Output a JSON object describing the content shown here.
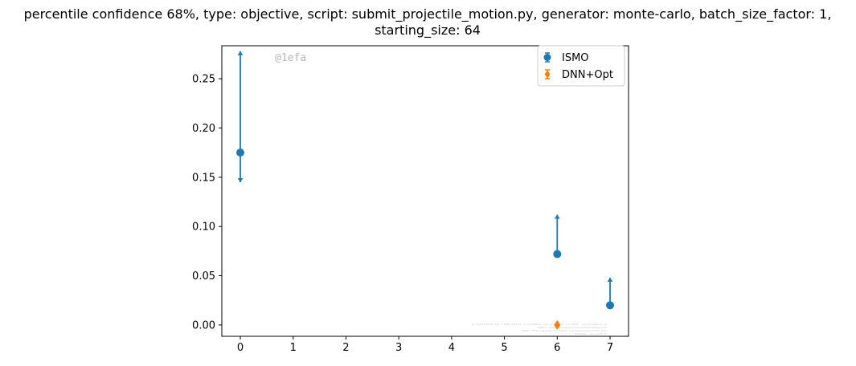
{
  "chart_data": {
    "type": "scatter",
    "title_lines": [
      "percentile confidence 68%, type: objective, script: submit_projectile_motion.py, generator: monte-carlo, batch_size_factor: 1,",
      "starting_size: 64"
    ],
    "xlabel": "",
    "ylabel": "",
    "xlim": [
      -0.35,
      7.35
    ],
    "ylim": [
      -0.0115,
      0.2835
    ],
    "xticks": [
      0,
      1,
      2,
      3,
      4,
      5,
      6,
      7
    ],
    "yticks": [
      0.0,
      0.05,
      0.1,
      0.15,
      0.2,
      0.25
    ],
    "ytick_labels": [
      "0.00",
      "0.05",
      "0.10",
      "0.15",
      "0.20",
      "0.25"
    ],
    "grid": false,
    "legend_position": "top-right",
    "series": [
      {
        "name": "ISMO",
        "color": "#1f77b4",
        "marker": "circle",
        "points": [
          {
            "x": 0,
            "y": 0.175,
            "low": 0.145,
            "high": 0.278
          },
          {
            "x": 6,
            "y": 0.072,
            "low": 0.071,
            "high": 0.112
          },
          {
            "x": 7,
            "y": 0.02,
            "low": 0.019,
            "high": 0.048
          }
        ]
      },
      {
        "name": "DNN+Opt",
        "color": "#ff7f0e",
        "marker": "diamond",
        "points": [
          {
            "x": 6,
            "y": 0.0,
            "low": 0.0,
            "high": 0.0
          }
        ]
      }
    ],
    "annotations": {
      "watermark": "@1efa",
      "faint_text_lines": [
        "By Kjetil Olsen Lye 2.0780 objects in SyntHomeal Loen and Kjetil Lye 2019 - www.mnomagdsef.de",
        "Commit: 1efa1e1e7fa1e1e1e7fa1e1e1e7fa1e1e1e7fa1e",
        "Repo: https://github.com/kjetil-lye/learning_airfoils_gits",
        "Hostname: xxx.local.li"
      ]
    }
  }
}
